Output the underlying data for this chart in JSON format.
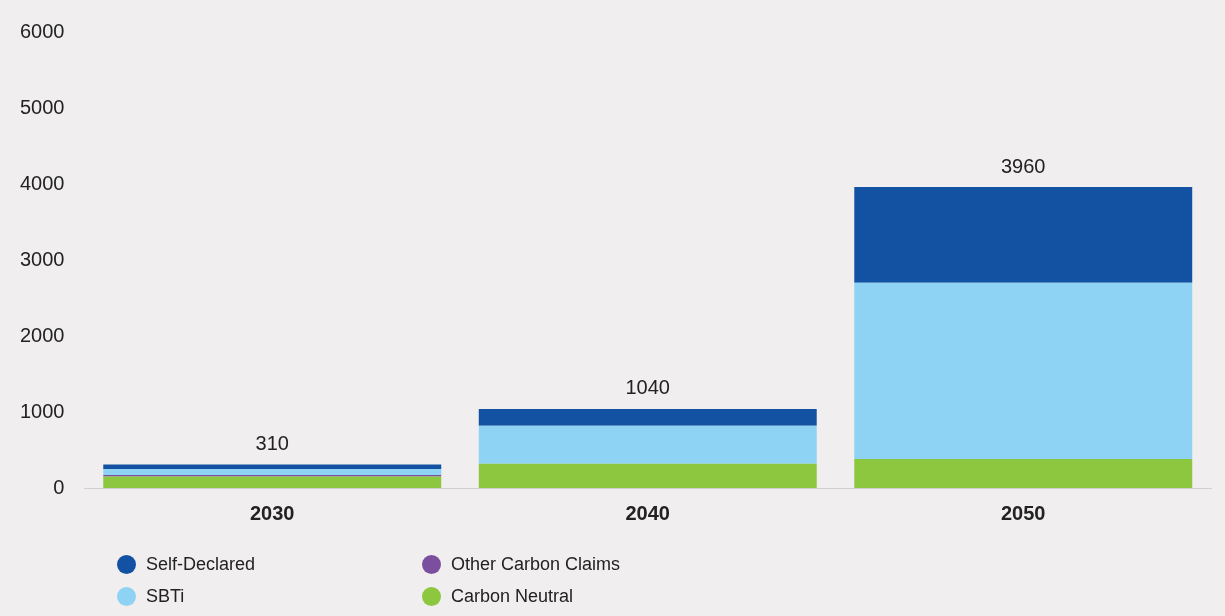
{
  "chart_data": {
    "type": "bar",
    "stacked": true,
    "categories": [
      "2030",
      "2040",
      "2050"
    ],
    "series": [
      {
        "name": "Carbon Neutral",
        "color": "#8dc63f",
        "values": [
          150,
          320,
          380
        ]
      },
      {
        "name": "Other Carbon Claims",
        "color": "#7b4f9e",
        "values": [
          20,
          0,
          0
        ]
      },
      {
        "name": "SBTi",
        "color": "#8fd3f4",
        "values": [
          80,
          500,
          2320
        ]
      },
      {
        "name": "Self-Declared",
        "color": "#1352a2",
        "values": [
          60,
          220,
          1260
        ]
      }
    ],
    "totals": [
      "310",
      "1040",
      "3960"
    ],
    "ylim": [
      0,
      6000
    ],
    "yticks": [
      0,
      1000,
      2000,
      3000,
      4000,
      5000,
      6000
    ],
    "grid": false,
    "legend": "bottom"
  }
}
